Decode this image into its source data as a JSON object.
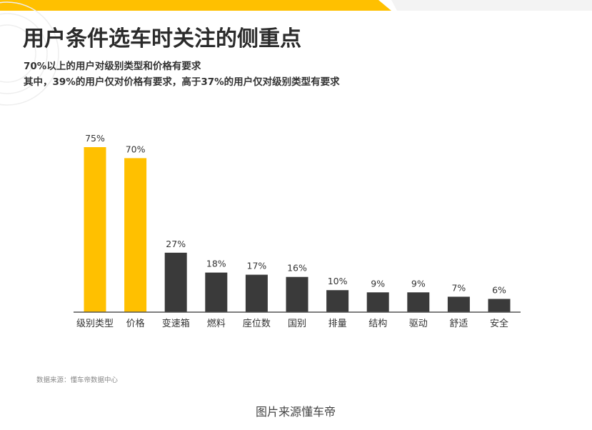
{
  "chart_data": {
    "type": "bar",
    "title": "用户条件选车时关注的侧重点",
    "subtitle_lines": [
      "70%以上的用户对级别类型和价格有要求",
      "其中，39%的用户仅对价格有要求，高于37%的用户仅对级别类型有要求"
    ],
    "categories": [
      "级别类型",
      "价格",
      "变速箱",
      "燃料",
      "座位数",
      "国别",
      "排量",
      "结构",
      "驱动",
      "舒适",
      "安全"
    ],
    "values": [
      75,
      70,
      27,
      18,
      17,
      16,
      10,
      9,
      9,
      7,
      6
    ],
    "value_labels": [
      "75%",
      "70%",
      "27%",
      "18%",
      "17%",
      "16%",
      "10%",
      "9%",
      "9%",
      "7%",
      "6%"
    ],
    "highlight_categories": [
      "级别类型",
      "价格"
    ],
    "ylim": [
      0,
      80
    ],
    "grid": false,
    "legend": "none",
    "source_note": "数据来源：懂车帝数据中心"
  },
  "colors": {
    "highlight_bar": "#FFC000",
    "default_bar": "#3A3A3A",
    "accent_stripe": "#FFC000",
    "title": "#2B2B2B",
    "text": "#333333",
    "caption": "#444444"
  },
  "caption": "图片来源懂车帝"
}
